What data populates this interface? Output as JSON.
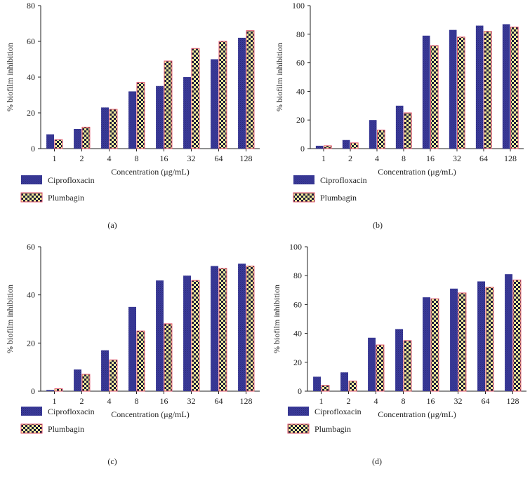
{
  "chart_data": [
    {
      "id": "a",
      "type": "bar",
      "panel_label": "(a)",
      "xlabel": "Concentration (μg/mL)",
      "ylabel": "% biofilm inhibition",
      "categories": [
        "1",
        "2",
        "4",
        "8",
        "16",
        "32",
        "64",
        "128"
      ],
      "ylim": [
        0,
        80
      ],
      "yticks": [
        0,
        20,
        40,
        60,
        80
      ],
      "series": [
        {
          "name": "Ciprofloxacin",
          "values": [
            8,
            11,
            23,
            32,
            35,
            40,
            50,
            62
          ]
        },
        {
          "name": "Plumbagin",
          "values": [
            5,
            12,
            22,
            37,
            49,
            56,
            60,
            66
          ]
        }
      ],
      "legend": [
        "Ciprofloxacin",
        "Plumbagin"
      ]
    },
    {
      "id": "b",
      "type": "bar",
      "panel_label": "(b)",
      "xlabel": "Concentration (μg/mL)",
      "ylabel": "% biofilm inhibition",
      "categories": [
        "1",
        "2",
        "4",
        "8",
        "16",
        "32",
        "64",
        "128"
      ],
      "ylim": [
        0,
        100
      ],
      "yticks": [
        0,
        20,
        40,
        60,
        80,
        100
      ],
      "series": [
        {
          "name": "Ciprofloxacin",
          "values": [
            2,
            6,
            20,
            30,
            79,
            83,
            86,
            87
          ]
        },
        {
          "name": "Plumbagin",
          "values": [
            2,
            4,
            13,
            25,
            72,
            78,
            82,
            85
          ]
        }
      ],
      "legend": [
        "Ciprofloxacin",
        "Plumbagin"
      ]
    },
    {
      "id": "c",
      "type": "bar",
      "panel_label": "(c)",
      "xlabel": "Concentration (μg/mL)",
      "ylabel": "% biofilm inhibition",
      "categories": [
        "1",
        "2",
        "4",
        "8",
        "16",
        "32",
        "64",
        "128"
      ],
      "ylim": [
        0,
        60
      ],
      "yticks": [
        0,
        20,
        40,
        60
      ],
      "series": [
        {
          "name": "Ciprofloxacin",
          "values": [
            0.5,
            9,
            17,
            35,
            46,
            48,
            52,
            53
          ]
        },
        {
          "name": "Plumbagin",
          "values": [
            1,
            7,
            13,
            25,
            28,
            46,
            51,
            52
          ]
        }
      ],
      "legend": [
        "Ciprofloxacin",
        "Plumbagin"
      ]
    },
    {
      "id": "d",
      "type": "bar",
      "panel_label": "(d)",
      "xlabel": "Concentration (μg/mL)",
      "ylabel": "% biofilm inhibition",
      "categories": [
        "1",
        "2",
        "4",
        "8",
        "16",
        "32",
        "64",
        "128"
      ],
      "ylim": [
        0,
        100
      ],
      "yticks": [
        0,
        20,
        40,
        60,
        80,
        100
      ],
      "series": [
        {
          "name": "Ciprofloxacin",
          "values": [
            10,
            13,
            37,
            43,
            65,
            71,
            76,
            81
          ]
        },
        {
          "name": "Plumbagin",
          "values": [
            4,
            7,
            32,
            35,
            64,
            68,
            72,
            77
          ]
        }
      ],
      "legend": [
        "Ciprofloxacin",
        "Plumbagin"
      ]
    }
  ],
  "colors": {
    "ciprofloxacin_fill": "#3a3a9a",
    "ciprofloxacin_dark": "#2a2a78",
    "plumbagin_yellow": "#f2ec9a",
    "plumbagin_dark": "#1e1e3a",
    "plumbagin_border": "#e0526a",
    "axis": "#222222"
  }
}
